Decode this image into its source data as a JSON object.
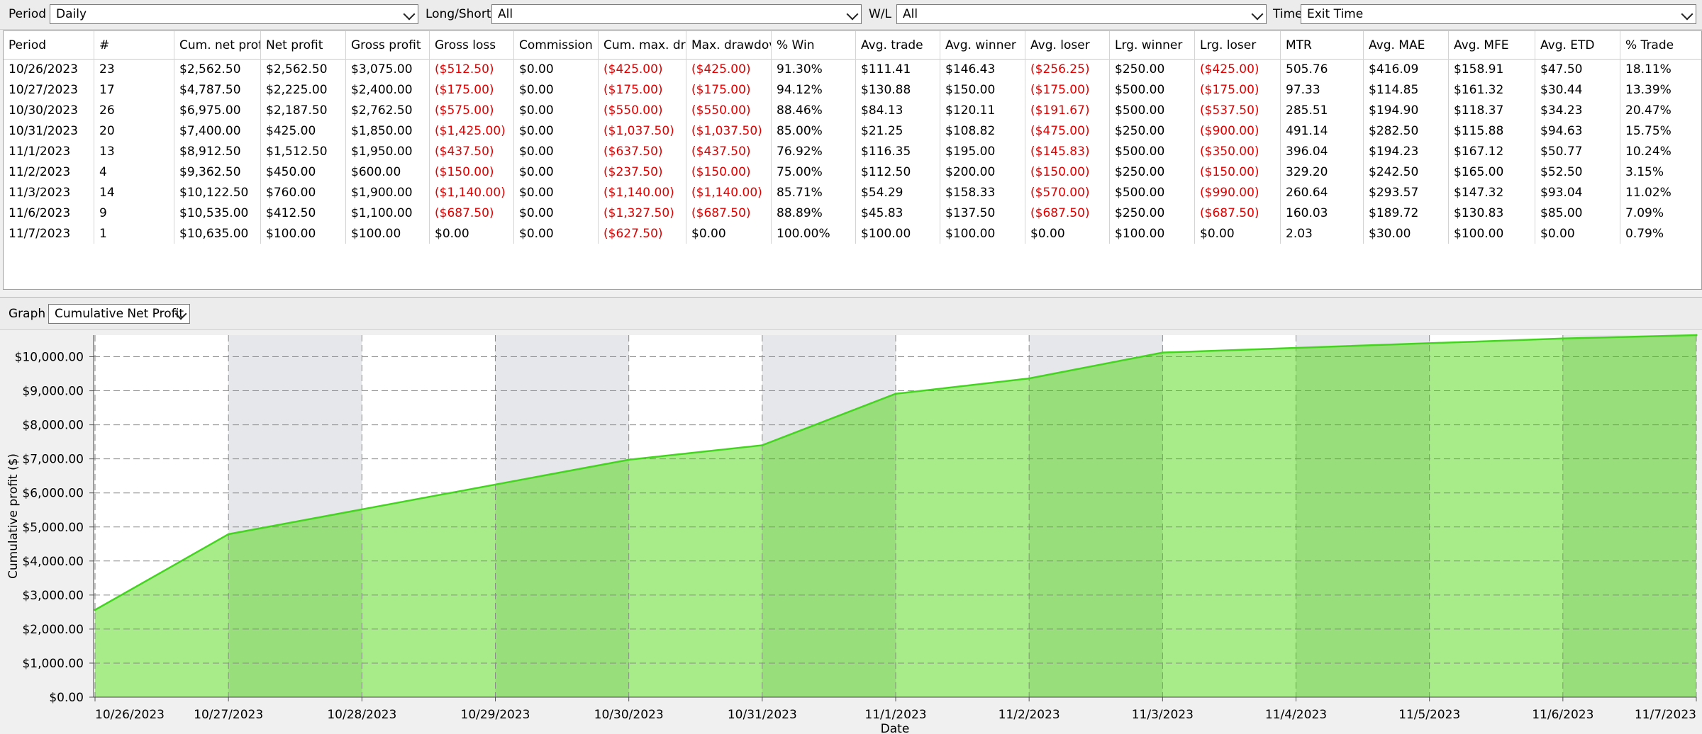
{
  "filters": {
    "period_label": "Period",
    "period_value": "Daily",
    "longshort_label": "Long/Short",
    "longshort_value": "All",
    "wl_label": "W/L",
    "wl_value": "All",
    "timebase_label": "Time base",
    "timebase_value": "Exit Time"
  },
  "table": {
    "headers": [
      "Period",
      "#",
      "Cum. net prof",
      "Net profit",
      "Gross profit",
      "Gross loss",
      "Commission",
      "Cum. max. dra",
      "Max. drawdov",
      "% Win",
      "Avg. trade",
      "Avg. winner",
      "Avg. loser",
      "Lrg. winner",
      "Lrg. loser",
      "MTR",
      "Avg. MAE",
      "Avg. MFE",
      "Avg. ETD",
      "% Trade"
    ],
    "rows": [
      [
        "10/26/2023",
        "23",
        "$2,562.50",
        "$2,562.50",
        "$3,075.00",
        "($512.50)",
        "$0.00",
        "($425.00)",
        "($425.00)",
        "91.30%",
        "$111.41",
        "$146.43",
        "($256.25)",
        "$250.00",
        "($425.00)",
        "505.76",
        "$416.09",
        "$158.91",
        "$47.50",
        "18.11%"
      ],
      [
        "10/27/2023",
        "17",
        "$4,787.50",
        "$2,225.00",
        "$2,400.00",
        "($175.00)",
        "$0.00",
        "($175.00)",
        "($175.00)",
        "94.12%",
        "$130.88",
        "$150.00",
        "($175.00)",
        "$500.00",
        "($175.00)",
        "97.33",
        "$114.85",
        "$161.32",
        "$30.44",
        "13.39%"
      ],
      [
        "10/30/2023",
        "26",
        "$6,975.00",
        "$2,187.50",
        "$2,762.50",
        "($575.00)",
        "$0.00",
        "($550.00)",
        "($550.00)",
        "88.46%",
        "$84.13",
        "$120.11",
        "($191.67)",
        "$500.00",
        "($537.50)",
        "285.51",
        "$194.90",
        "$118.37",
        "$34.23",
        "20.47%"
      ],
      [
        "10/31/2023",
        "20",
        "$7,400.00",
        "$425.00",
        "$1,850.00",
        "($1,425.00)",
        "$0.00",
        "($1,037.50)",
        "($1,037.50)",
        "85.00%",
        "$21.25",
        "$108.82",
        "($475.00)",
        "$250.00",
        "($900.00)",
        "491.14",
        "$282.50",
        "$115.88",
        "$94.63",
        "15.75%"
      ],
      [
        "11/1/2023",
        "13",
        "$8,912.50",
        "$1,512.50",
        "$1,950.00",
        "($437.50)",
        "$0.00",
        "($637.50)",
        "($437.50)",
        "76.92%",
        "$116.35",
        "$195.00",
        "($145.83)",
        "$500.00",
        "($350.00)",
        "396.04",
        "$194.23",
        "$167.12",
        "$50.77",
        "10.24%"
      ],
      [
        "11/2/2023",
        "4",
        "$9,362.50",
        "$450.00",
        "$600.00",
        "($150.00)",
        "$0.00",
        "($237.50)",
        "($150.00)",
        "75.00%",
        "$112.50",
        "$200.00",
        "($150.00)",
        "$250.00",
        "($150.00)",
        "329.20",
        "$242.50",
        "$165.00",
        "$52.50",
        "3.15%"
      ],
      [
        "11/3/2023",
        "14",
        "$10,122.50",
        "$760.00",
        "$1,900.00",
        "($1,140.00)",
        "$0.00",
        "($1,140.00)",
        "($1,140.00)",
        "85.71%",
        "$54.29",
        "$158.33",
        "($570.00)",
        "$500.00",
        "($990.00)",
        "260.64",
        "$293.57",
        "$147.32",
        "$93.04",
        "11.02%"
      ],
      [
        "11/6/2023",
        "9",
        "$10,535.00",
        "$412.50",
        "$1,100.00",
        "($687.50)",
        "$0.00",
        "($1,327.50)",
        "($687.50)",
        "88.89%",
        "$45.83",
        "$137.50",
        "($687.50)",
        "$250.00",
        "($687.50)",
        "160.03",
        "$189.72",
        "$130.83",
        "$85.00",
        "7.09%"
      ],
      [
        "11/7/2023",
        "1",
        "$10,635.00",
        "$100.00",
        "$100.00",
        "$0.00",
        "$0.00",
        "($627.50)",
        "$0.00",
        "100.00%",
        "$100.00",
        "$100.00",
        "$0.00",
        "$100.00",
        "$0.00",
        "2.03",
        "$30.00",
        "$100.00",
        "$0.00",
        "0.79%"
      ]
    ]
  },
  "graph": {
    "label": "Graph",
    "selected": "Cumulative Net Profit"
  },
  "colors": {
    "negative": "#e10000",
    "area_fill": "#a8ec8a",
    "area_fill_shaded": "#98de7a",
    "area_line": "#44d420",
    "band": "#e6e7ea"
  },
  "chart_data": {
    "type": "area",
    "xlabel": "Date",
    "ylabel": "Cumulative profit ($)",
    "x_ticks": [
      "10/26/2023",
      "10/27/2023",
      "10/28/2023",
      "10/29/2023",
      "10/30/2023",
      "10/31/2023",
      "11/1/2023",
      "11/2/2023",
      "11/3/2023",
      "11/4/2023",
      "11/5/2023",
      "11/6/2023",
      "11/7/2023"
    ],
    "x": [
      "10/26/2023",
      "10/27/2023",
      "10/30/2023",
      "10/31/2023",
      "11/1/2023",
      "11/2/2023",
      "11/3/2023",
      "11/6/2023",
      "11/7/2023"
    ],
    "values": [
      2562.5,
      4787.5,
      6975.0,
      7400.0,
      8912.5,
      9362.5,
      10122.5,
      10535.0,
      10635.0
    ],
    "y_ticks": [
      "$0.00",
      "$1,000.00",
      "$2,000.00",
      "$3,000.00",
      "$4,000.00",
      "$5,000.00",
      "$6,000.00",
      "$7,000.00",
      "$8,000.00",
      "$9,000.00",
      "$10,000.00"
    ],
    "ylim": [
      0,
      10635
    ],
    "grid": true
  }
}
